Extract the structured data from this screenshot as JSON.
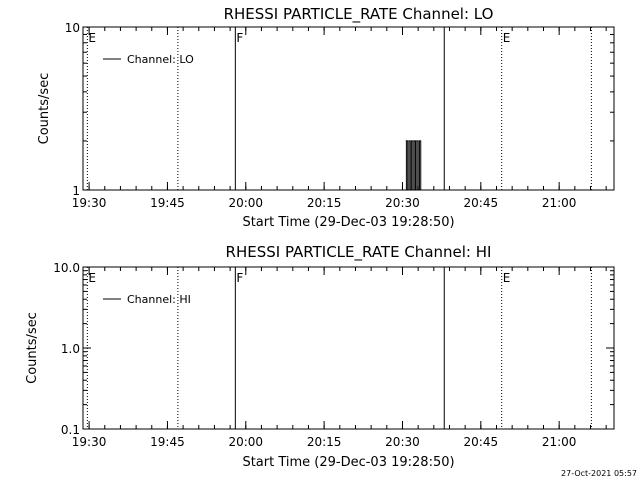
{
  "chart_data": [
    {
      "type": "line",
      "title": "RHESSI PARTICLE_RATE Channel: LO",
      "xlabel": "Start Time (29-Dec-03 19:28:50)",
      "ylabel": "Counts/sec",
      "y_scale": "log",
      "ylim": [
        1,
        10
      ],
      "y_ticks": [
        1,
        10
      ],
      "y_tick_labels": [
        "1",
        "10"
      ],
      "xlim": [
        "19:28:50",
        "21:10:30"
      ],
      "x_ticks": [
        "19:30",
        "19:45",
        "20:00",
        "20:15",
        "20:30",
        "20:45",
        "21:00"
      ],
      "grid": false,
      "legend": {
        "position": "top-left",
        "entries": [
          "Channel: LO"
        ]
      },
      "series": [
        {
          "name": "Channel: LO",
          "x": [
            "20:30:30",
            "20:30:45",
            "20:31:00",
            "20:31:15",
            "20:31:30",
            "20:31:45",
            "20:32:00",
            "20:32:15",
            "20:32:30",
            "20:32:45",
            "20:33:00",
            "20:33:15",
            "20:33:30"
          ],
          "values": [
            1,
            2,
            1,
            2,
            1,
            2,
            1,
            2,
            1,
            2,
            1,
            2,
            1
          ]
        }
      ],
      "vertical_markers": [
        {
          "time": "19:29:40",
          "style": "dotted",
          "label": "E"
        },
        {
          "time": "19:47:00",
          "style": "dotted",
          "label": ""
        },
        {
          "time": "19:58:00",
          "style": "solid",
          "label": "F"
        },
        {
          "time": "20:38:00",
          "style": "solid",
          "label": ""
        },
        {
          "time": "20:49:00",
          "style": "dotted",
          "label": "E"
        },
        {
          "time": "21:06:10",
          "style": "dotted",
          "label": ""
        }
      ]
    },
    {
      "type": "line",
      "title": "RHESSI PARTICLE_RATE Channel: HI",
      "xlabel": "Start Time (29-Dec-03 19:28:50)",
      "ylabel": "Counts/sec",
      "y_scale": "log",
      "ylim": [
        0.1,
        10
      ],
      "y_ticks": [
        0.1,
        1,
        10
      ],
      "y_tick_labels": [
        "0.1",
        "1.0",
        "10.0"
      ],
      "xlim": [
        "19:28:50",
        "21:10:30"
      ],
      "x_ticks": [
        "19:30",
        "19:45",
        "20:00",
        "20:15",
        "20:30",
        "20:45",
        "21:00"
      ],
      "grid": false,
      "legend": {
        "position": "top-left",
        "entries": [
          "Channel: HI"
        ]
      },
      "series": [
        {
          "name": "Channel: HI",
          "x": [],
          "values": []
        }
      ],
      "vertical_markers": [
        {
          "time": "19:29:40",
          "style": "dotted",
          "label": "E"
        },
        {
          "time": "19:47:00",
          "style": "dotted",
          "label": ""
        },
        {
          "time": "19:58:00",
          "style": "solid",
          "label": "F"
        },
        {
          "time": "20:38:00",
          "style": "solid",
          "label": ""
        },
        {
          "time": "20:49:00",
          "style": "dotted",
          "label": "E"
        },
        {
          "time": "21:06:10",
          "style": "dotted",
          "label": ""
        }
      ]
    }
  ],
  "footer": {
    "timestamp": "27-Oct-2021 05:57"
  },
  "colors": {
    "background": "#ffffff",
    "foreground": "#000000"
  }
}
